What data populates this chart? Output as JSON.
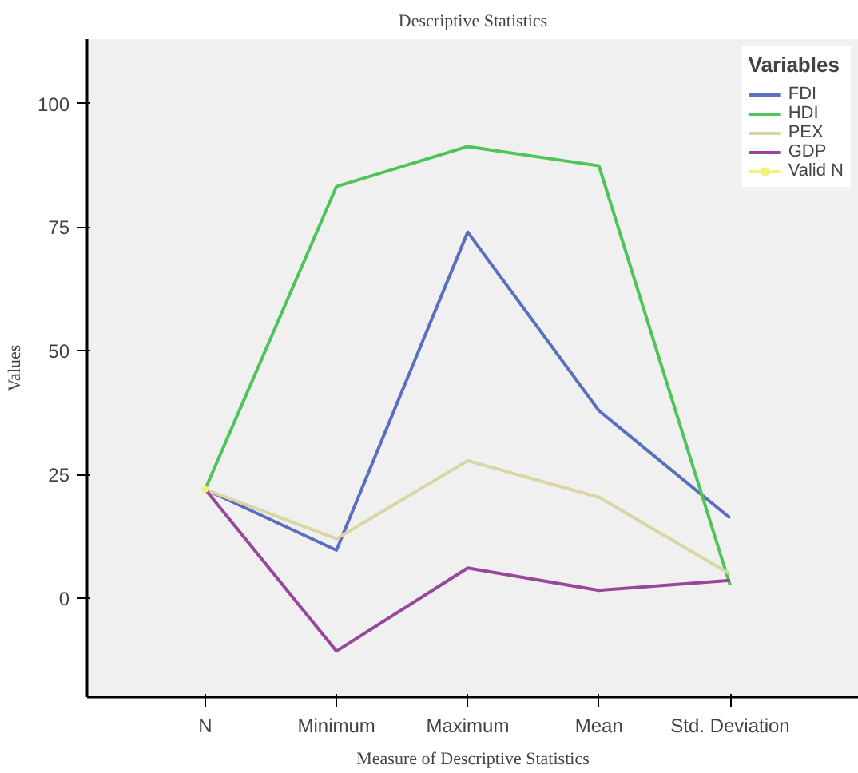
{
  "chart_data": {
    "type": "line",
    "title": "Descriptive Statistics",
    "xlabel": "Measure of Descriptive Statistics",
    "ylabel": "Values",
    "legend_title": "Variables",
    "categories": [
      "N",
      "Minimum",
      "Maximum",
      "Mean",
      "Std. Deviation"
    ],
    "series": [
      {
        "name": "FDI",
        "color": "#5a6fbf",
        "values": [
          22,
          9.7,
          74,
          37.9,
          16.2
        ]
      },
      {
        "name": "HDI",
        "color": "#4fc45a",
        "values": [
          22,
          83.2,
          91.3,
          87.4,
          2.6
        ]
      },
      {
        "name": "PEX",
        "color": "#d9d6a4",
        "values": [
          22,
          12,
          27.8,
          20.4,
          4.9
        ]
      },
      {
        "name": "GDP",
        "color": "#98489a",
        "values": [
          22,
          -10.7,
          6.1,
          1.6,
          3.6
        ]
      },
      {
        "name": "Valid N",
        "color": "#f5f07a",
        "values": [
          22,
          null,
          null,
          null,
          null
        ]
      }
    ],
    "ylim": [
      -20,
      113
    ],
    "yticks": [
      0,
      25,
      50,
      75,
      100
    ],
    "grid": false,
    "legend": "top right",
    "marker": "none",
    "line_style": "solid"
  }
}
